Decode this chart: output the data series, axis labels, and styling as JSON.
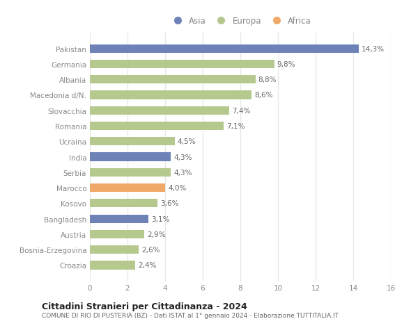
{
  "countries": [
    "Pakistan",
    "Germania",
    "Albania",
    "Macedonia d/N.",
    "Slovacchia",
    "Romania",
    "Ucraina",
    "India",
    "Serbia",
    "Marocco",
    "Kosovo",
    "Bangladesh",
    "Austria",
    "Bosnia-Erzegovina",
    "Croazia"
  ],
  "values": [
    14.3,
    9.8,
    8.8,
    8.6,
    7.4,
    7.1,
    4.5,
    4.3,
    4.3,
    4.0,
    3.6,
    3.1,
    2.9,
    2.6,
    2.4
  ],
  "labels": [
    "14,3%",
    "9,8%",
    "8,8%",
    "8,6%",
    "7,4%",
    "7,1%",
    "4,5%",
    "4,3%",
    "4,3%",
    "4,0%",
    "3,6%",
    "3,1%",
    "2,9%",
    "2,6%",
    "2,4%"
  ],
  "bar_colors": [
    "#6e82b8",
    "#b5c98e",
    "#b5c98e",
    "#b5c98e",
    "#b5c98e",
    "#b5c98e",
    "#b5c98e",
    "#6e82b8",
    "#b5c98e",
    "#f0a868",
    "#b5c98e",
    "#6e82b8",
    "#b5c98e",
    "#b5c98e",
    "#b5c98e"
  ],
  "xlim": [
    0,
    16
  ],
  "xticks": [
    0,
    2,
    4,
    6,
    8,
    10,
    12,
    14,
    16
  ],
  "title": "Cittadini Stranieri per Cittadinanza - 2024",
  "subtitle": "COMUNE DI RIO DI PUSTERIA (BZ) - Dati ISTAT al 1° gennaio 2024 - Elaborazione TUTTITALIA.IT",
  "bg_color": "#ffffff",
  "plot_bg_color": "#f9f9f9",
  "grid_color": "#e8e8e8",
  "legend_labels": [
    "Asia",
    "Europa",
    "Africa"
  ],
  "legend_colors": [
    "#6e82b8",
    "#b5c98e",
    "#f0a868"
  ],
  "label_color": "#666666",
  "tick_color": "#888888",
  "title_color": "#222222",
  "subtitle_color": "#666666"
}
